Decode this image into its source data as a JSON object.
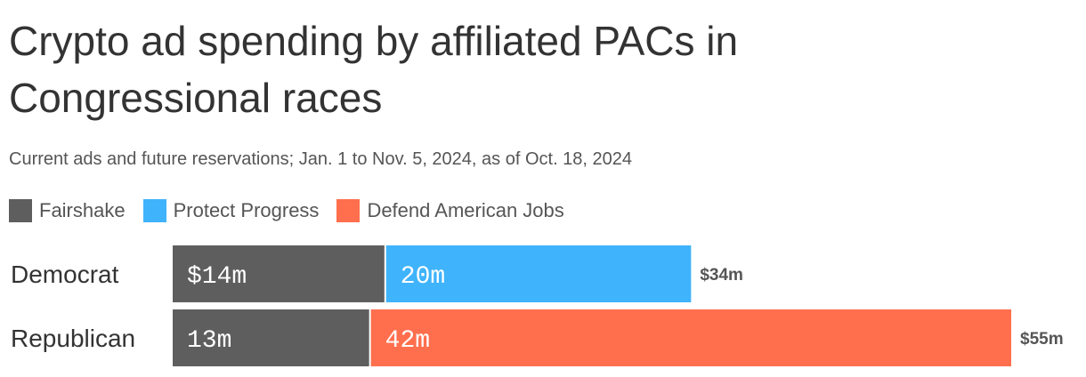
{
  "chart_data": {
    "type": "bar",
    "orientation": "horizontal",
    "stacked": true,
    "title": "Crypto ad spending by affiliated PACs in Congressional races",
    "subtitle": "Current ads and future reservations; Jan. 1 to Nov. 5, 2024, as of Oct. 18, 2024",
    "legend": [
      {
        "name": "Fairshake",
        "color": "#5e5e5e"
      },
      {
        "name": "Protect Progress",
        "color": "#3fb3fb"
      },
      {
        "name": "Defend American Jobs",
        "color": "#ff6f4e"
      }
    ],
    "legend_position": "top-left",
    "unit": "million dollars",
    "categories": [
      {
        "name": "Democrat",
        "total_label": "$34m",
        "segments": [
          {
            "series": "Fairshake",
            "value": 14,
            "label": "$14m"
          },
          {
            "series": "Protect Progress",
            "value": 20,
            "label": "20m"
          }
        ]
      },
      {
        "name": "Republican",
        "total_label": "$55m",
        "segments": [
          {
            "series": "Fairshake",
            "value": 13,
            "label": "13m"
          },
          {
            "series": "Defend American Jobs",
            "value": 42,
            "label": "42m"
          }
        ]
      }
    ],
    "xlim": [
      0,
      55
    ],
    "grid": false
  }
}
